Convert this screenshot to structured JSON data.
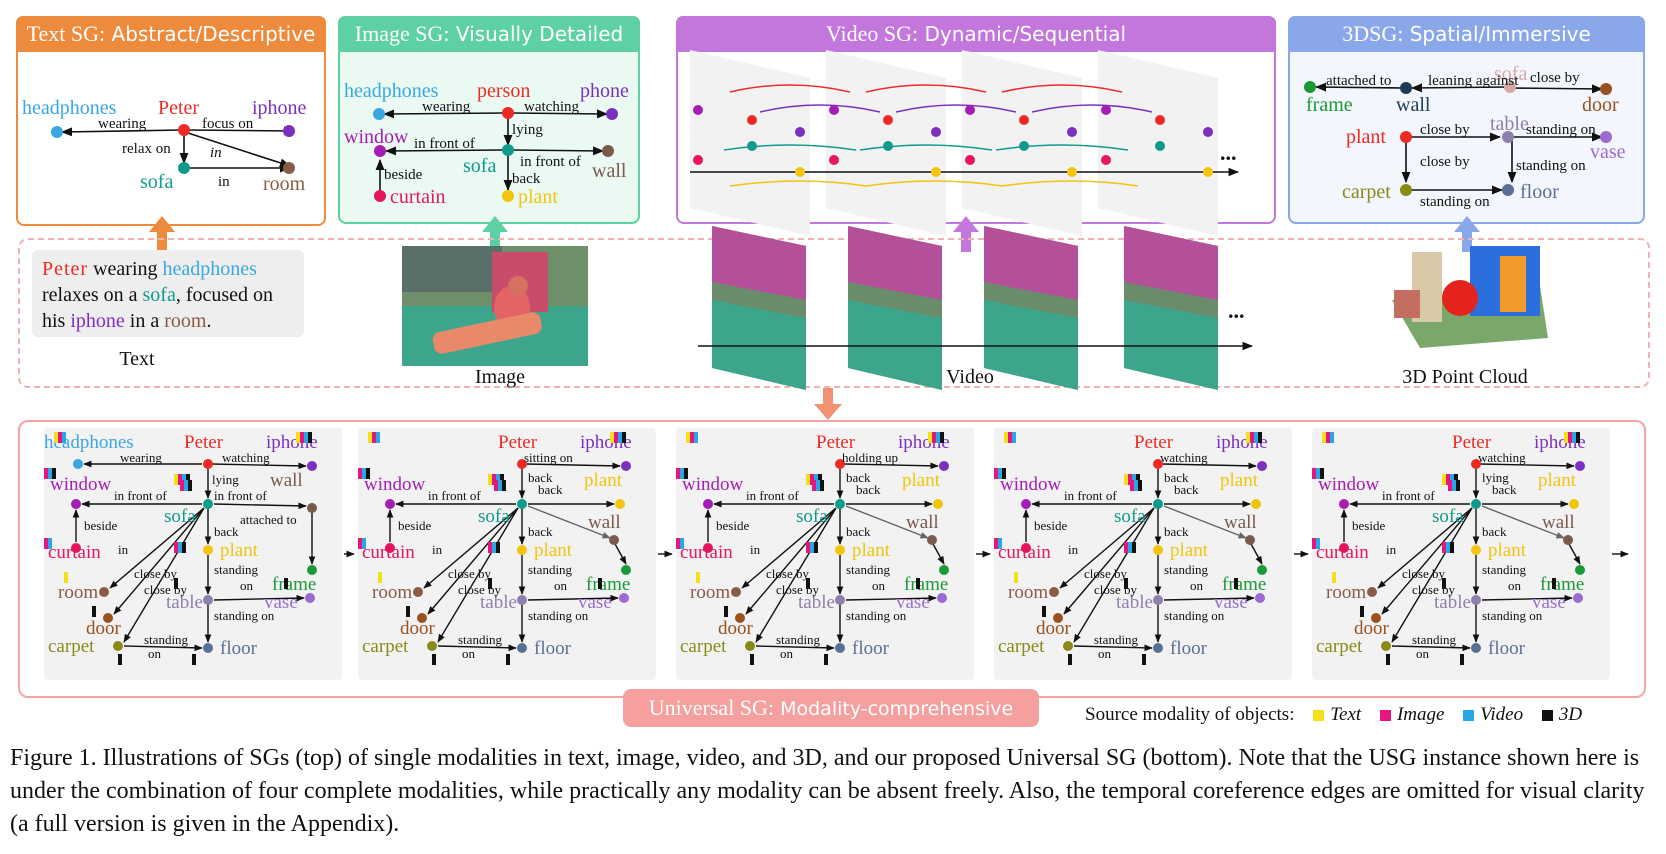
{
  "panels": {
    "text_sg": {
      "prefix": "Text SG:",
      "suffix": "Abstract/Descriptive",
      "color": "#ee8a3c"
    },
    "image_sg": {
      "prefix": "Image SG:",
      "suffix": "Visually Detailed",
      "color": "#5dd1a4"
    },
    "video_sg": {
      "prefix": "Video SG:",
      "suffix": "Dynamic/Sequential",
      "color": "#c377dd"
    },
    "three_d_sg": {
      "prefix": "3DSG:",
      "suffix": "Spatial/Immersive",
      "color": "#8aa7ea"
    }
  },
  "text_sg_graph": {
    "nodes": {
      "headphones": "headphones",
      "peter": "Peter",
      "iphone": "iphone",
      "sofa": "sofa",
      "room": "room"
    },
    "edges": {
      "wearing": "wearing",
      "focus_on": "focus on",
      "relax_on": "relax on",
      "in1": "in",
      "in2": "in"
    }
  },
  "image_sg_graph": {
    "nodes": {
      "headphones": "headphones",
      "person": "person",
      "phone": "phone",
      "window": "window",
      "sofa": "sofa",
      "wall": "wall",
      "curtain": "curtain",
      "plant": "plant"
    },
    "edges": {
      "wearing": "wearing",
      "watching": "watching",
      "lying": "lying",
      "in_front_of1": "in front of",
      "in_front_of2": "in front of",
      "beside": "beside",
      "back": "back"
    }
  },
  "three_d_graph": {
    "nodes": {
      "frame": "frame",
      "wall": "wall",
      "sofa": "sofa",
      "door": "door",
      "plant": "plant",
      "table": "table",
      "vase": "vase",
      "carpet": "carpet",
      "floor": "floor"
    },
    "edges": {
      "attached_to": "attached to",
      "leaning_against": "leaning against",
      "close_by1": "close by",
      "close_by2": "close by",
      "close_by3": "close by",
      "standing_on1": "standing on",
      "standing_on2": "standing on",
      "standing_on3": "standing on"
    }
  },
  "inputs": {
    "text_words": [
      "Peter",
      " wearing ",
      "headphones",
      " relaxes on a ",
      "sofa",
      ", focused on his ",
      "iphone",
      " in a ",
      "room",
      "."
    ],
    "text_label": "Text",
    "image_label": "Image",
    "video_label": "Video",
    "video_ellipsis": "...",
    "pointcloud_label": "3D Point Cloud"
  },
  "usg": {
    "title_prefix": "Universal SG:",
    "title_suffix": "Modality-comprehensive",
    "frame1": {
      "nodes": [
        "headphones",
        "Peter",
        "iphone",
        "window",
        "sofa",
        "wall",
        "curtain",
        "plant",
        "frame",
        "room",
        "door",
        "table",
        "vase",
        "carpet",
        "floor"
      ],
      "edges": [
        "wearing",
        "watching",
        "lying",
        "in front of",
        "in front of",
        "beside",
        "back",
        "attached to",
        "in",
        "close by",
        "close by",
        "close by",
        "standing",
        "on",
        "standing on",
        "standing",
        "on"
      ]
    },
    "frames": [
      {
        "top_edge": "sitting on",
        "mid_edge": "back",
        "wall_edge": "back"
      },
      {
        "top_edge": "holding up",
        "mid_edge": "back",
        "wall_edge": "back"
      },
      {
        "top_edge": "watching",
        "mid_edge": "back",
        "wall_edge": "back"
      },
      {
        "top_edge": "watching",
        "mid_edge": "lying",
        "wall_edge": "back"
      }
    ],
    "common_nodes": [
      "Peter",
      "iphone",
      "window",
      "plant",
      "sofa",
      "wall",
      "curtain",
      "plant",
      "frame",
      "room",
      "door",
      "table",
      "vase",
      "carpet",
      "floor"
    ],
    "common_edges": [
      "in front of",
      "beside",
      "back",
      "in",
      "close by",
      "close by",
      "close by",
      "standing",
      "on",
      "standing on",
      "standing",
      "on"
    ]
  },
  "legend": {
    "label": "Source modality of objects:",
    "items": [
      {
        "name": "Text",
        "color": "#f2e01a"
      },
      {
        "name": "Image",
        "color": "#e6157f"
      },
      {
        "name": "Video",
        "color": "#27a6e8"
      },
      {
        "name": "3D",
        "color": "#111111"
      }
    ]
  },
  "caption": "Figure 1.  Illustrations of SGs (top) of single modalities in text, image, video, and 3D, and our proposed Universal SG (bottom). Note that the USG instance shown here is under the combination of four complete modalities, while practically any modality can be absent freely. Also, the temporal coreference edges are omitted for visual clarity (a full version is given in the Appendix).",
  "colors": {
    "headphones": "#3aa7e3",
    "peter": "#ee2a24",
    "iphone": "#7d2fbf",
    "sofa": "#109a8c",
    "room": "#8a5b45",
    "window": "#a61db5",
    "curtain": "#e6155e",
    "plant": "#f2c40f",
    "wall": "#7a5a4a",
    "frame": "#1a9a36",
    "door": "#99511f",
    "table": "#8f7fae",
    "vase": "#9b6bd1",
    "carpet": "#8a8a18",
    "floor": "#5a6f95",
    "arrow": "#f19272"
  }
}
